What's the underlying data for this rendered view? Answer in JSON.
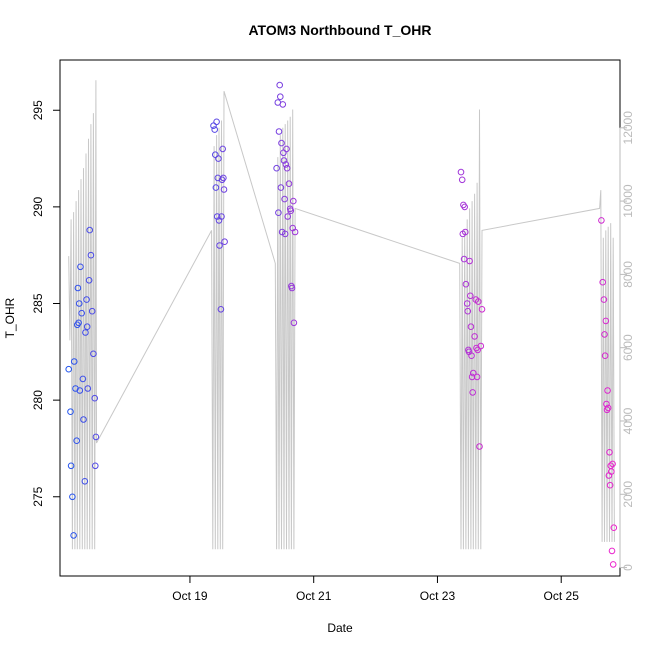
{
  "chart_data": {
    "type": "scatter",
    "title": "ATOM3 Northbound T_OHR",
    "xlabel": "Date",
    "ylabel": "T_OHR",
    "xlim": [
      16.9,
      25.95
    ],
    "ylim": [
      270.9,
      297.6
    ],
    "y2lim": [
      -230,
      13850
    ],
    "x_ticks": [
      {
        "value": 19,
        "label": "Oct 19"
      },
      {
        "value": 21,
        "label": "Oct 21"
      },
      {
        "value": 23,
        "label": "Oct 23"
      },
      {
        "value": 25,
        "label": "Oct 25"
      }
    ],
    "y_ticks": [
      275,
      280,
      285,
      290,
      295
    ],
    "y_tick_labels": [
      "275",
      "280",
      "285",
      "290",
      "295"
    ],
    "y2_ticks": [
      0,
      2000,
      4000,
      6000,
      8000,
      10000,
      12000
    ],
    "y2_tick_labels": [
      "0",
      "2000",
      "4000",
      "6000",
      "8000",
      "10000",
      "12000"
    ],
    "grid": false,
    "colors": {
      "secondary_line": "#c8c8c8",
      "secondary_axis": "#bbbbbb",
      "point_start": "#2255ee",
      "point_end": "#ee22cc"
    },
    "points": [
      [
        17.04,
        281.6
      ],
      [
        17.07,
        279.4
      ],
      [
        17.08,
        276.6
      ],
      [
        17.1,
        275.0
      ],
      [
        17.12,
        273.0
      ],
      [
        17.13,
        282.0
      ],
      [
        17.15,
        280.6
      ],
      [
        17.17,
        277.9
      ],
      [
        17.18,
        283.9
      ],
      [
        17.19,
        285.8
      ],
      [
        17.2,
        284.0
      ],
      [
        17.21,
        285.0
      ],
      [
        17.22,
        280.5
      ],
      [
        17.23,
        286.9
      ],
      [
        17.25,
        284.5
      ],
      [
        17.27,
        281.1
      ],
      [
        17.28,
        279.0
      ],
      [
        17.3,
        275.8
      ],
      [
        17.31,
        283.5
      ],
      [
        17.33,
        285.2
      ],
      [
        17.34,
        283.8
      ],
      [
        17.35,
        280.6
      ],
      [
        17.37,
        286.2
      ],
      [
        17.38,
        288.8
      ],
      [
        17.4,
        287.5
      ],
      [
        17.42,
        284.6
      ],
      [
        17.44,
        282.4
      ],
      [
        17.46,
        280.1
      ],
      [
        17.47,
        276.6
      ],
      [
        17.48,
        278.1
      ],
      [
        19.38,
        294.2
      ],
      [
        19.4,
        294.0
      ],
      [
        19.41,
        292.7
      ],
      [
        19.42,
        291.0
      ],
      [
        19.43,
        294.4
      ],
      [
        19.44,
        289.5
      ],
      [
        19.45,
        291.5
      ],
      [
        19.46,
        292.5
      ],
      [
        19.47,
        289.3
      ],
      [
        19.48,
        288.0
      ],
      [
        19.5,
        284.7
      ],
      [
        19.51,
        289.5
      ],
      [
        19.52,
        291.4
      ],
      [
        19.53,
        293.0
      ],
      [
        19.54,
        291.5
      ],
      [
        19.55,
        290.9
      ],
      [
        19.56,
        288.2
      ],
      [
        20.4,
        292.0
      ],
      [
        20.42,
        295.4
      ],
      [
        20.43,
        289.7
      ],
      [
        20.44,
        293.9
      ],
      [
        20.45,
        296.3
      ],
      [
        20.46,
        295.7
      ],
      [
        20.47,
        291.0
      ],
      [
        20.48,
        293.3
      ],
      [
        20.49,
        288.7
      ],
      [
        20.5,
        295.3
      ],
      [
        20.51,
        292.8
      ],
      [
        20.52,
        292.4
      ],
      [
        20.53,
        290.4
      ],
      [
        20.54,
        288.6
      ],
      [
        20.55,
        292.2
      ],
      [
        20.56,
        293.0
      ],
      [
        20.57,
        292.0
      ],
      [
        20.58,
        289.5
      ],
      [
        20.6,
        291.2
      ],
      [
        20.62,
        289.9
      ],
      [
        20.63,
        289.8
      ],
      [
        20.64,
        285.9
      ],
      [
        20.65,
        285.8
      ],
      [
        20.66,
        288.9
      ],
      [
        20.67,
        290.3
      ],
      [
        20.68,
        284.0
      ],
      [
        20.7,
        288.7
      ],
      [
        23.38,
        291.8
      ],
      [
        23.4,
        291.4
      ],
      [
        23.41,
        288.6
      ],
      [
        23.42,
        290.1
      ],
      [
        23.43,
        287.3
      ],
      [
        23.44,
        290.0
      ],
      [
        23.45,
        288.7
      ],
      [
        23.46,
        286.0
      ],
      [
        23.48,
        285.0
      ],
      [
        23.49,
        284.6
      ],
      [
        23.5,
        282.6
      ],
      [
        23.51,
        282.5
      ],
      [
        23.52,
        287.2
      ],
      [
        23.53,
        285.4
      ],
      [
        23.54,
        283.8
      ],
      [
        23.55,
        282.3
      ],
      [
        23.56,
        281.2
      ],
      [
        23.57,
        280.4
      ],
      [
        23.58,
        281.4
      ],
      [
        23.6,
        283.3
      ],
      [
        23.62,
        285.2
      ],
      [
        23.63,
        282.7
      ],
      [
        23.64,
        281.2
      ],
      [
        23.65,
        282.6
      ],
      [
        23.66,
        285.1
      ],
      [
        23.68,
        277.6
      ],
      [
        23.7,
        282.8
      ],
      [
        23.72,
        284.7
      ],
      [
        25.65,
        289.3
      ],
      [
        25.67,
        286.1
      ],
      [
        25.69,
        285.2
      ],
      [
        25.7,
        283.4
      ],
      [
        25.71,
        282.3
      ],
      [
        25.72,
        284.1
      ],
      [
        25.73,
        279.8
      ],
      [
        25.74,
        279.5
      ],
      [
        25.75,
        280.5
      ],
      [
        25.76,
        279.6
      ],
      [
        25.77,
        276.1
      ],
      [
        25.78,
        277.3
      ],
      [
        25.79,
        275.6
      ],
      [
        25.8,
        276.6
      ],
      [
        25.81,
        276.3
      ],
      [
        25.82,
        272.2
      ],
      [
        25.83,
        276.7
      ],
      [
        25.84,
        271.5
      ],
      [
        25.85,
        273.4
      ]
    ],
    "secondary_polyline": [
      [
        17.04,
        8500
      ],
      [
        17.06,
        6200
      ],
      [
        17.08,
        9500
      ],
      [
        17.1,
        500
      ],
      [
        17.12,
        9700
      ],
      [
        17.14,
        500
      ],
      [
        17.16,
        10000
      ],
      [
        17.18,
        500
      ],
      [
        17.2,
        10300
      ],
      [
        17.22,
        500
      ],
      [
        17.24,
        10600
      ],
      [
        17.26,
        500
      ],
      [
        17.28,
        10900
      ],
      [
        17.3,
        500
      ],
      [
        17.32,
        11300
      ],
      [
        17.34,
        500
      ],
      [
        17.36,
        11700
      ],
      [
        17.38,
        500
      ],
      [
        17.4,
        12100
      ],
      [
        17.42,
        500
      ],
      [
        17.44,
        12400
      ],
      [
        17.46,
        500
      ],
      [
        17.48,
        13300
      ],
      [
        17.49,
        3400
      ],
      [
        19.35,
        9200
      ],
      [
        19.37,
        500
      ],
      [
        19.39,
        11500
      ],
      [
        19.41,
        500
      ],
      [
        19.43,
        11800
      ],
      [
        19.45,
        500
      ],
      [
        19.47,
        12000
      ],
      [
        19.49,
        500
      ],
      [
        19.51,
        12200
      ],
      [
        19.53,
        500
      ],
      [
        19.55,
        13000
      ],
      [
        20.38,
        8300
      ],
      [
        20.4,
        500
      ],
      [
        20.42,
        11200
      ],
      [
        20.44,
        500
      ],
      [
        20.46,
        11800
      ],
      [
        20.48,
        500
      ],
      [
        20.5,
        12000
      ],
      [
        20.52,
        500
      ],
      [
        20.54,
        12100
      ],
      [
        20.56,
        500
      ],
      [
        20.58,
        12200
      ],
      [
        20.6,
        500
      ],
      [
        20.62,
        12300
      ],
      [
        20.64,
        500
      ],
      [
        20.66,
        12500
      ],
      [
        20.68,
        500
      ],
      [
        20.7,
        9800
      ],
      [
        23.36,
        8300
      ],
      [
        23.38,
        500
      ],
      [
        23.4,
        9000
      ],
      [
        23.42,
        500
      ],
      [
        23.44,
        9200
      ],
      [
        23.46,
        500
      ],
      [
        23.48,
        9500
      ],
      [
        23.5,
        500
      ],
      [
        23.52,
        9800
      ],
      [
        23.54,
        500
      ],
      [
        23.56,
        10000
      ],
      [
        23.58,
        500
      ],
      [
        23.6,
        10200
      ],
      [
        23.62,
        500
      ],
      [
        23.64,
        10500
      ],
      [
        23.66,
        500
      ],
      [
        23.68,
        12500
      ],
      [
        23.7,
        500
      ],
      [
        23.72,
        9200
      ],
      [
        25.62,
        9800
      ],
      [
        25.64,
        10300
      ],
      [
        25.66,
        700
      ],
      [
        25.68,
        9000
      ],
      [
        25.7,
        700
      ],
      [
        25.72,
        9200
      ],
      [
        25.74,
        700
      ],
      [
        25.76,
        9300
      ],
      [
        25.78,
        700
      ],
      [
        25.8,
        9400
      ],
      [
        25.82,
        700
      ],
      [
        25.84,
        9000
      ],
      [
        25.86,
        700
      ]
    ]
  }
}
